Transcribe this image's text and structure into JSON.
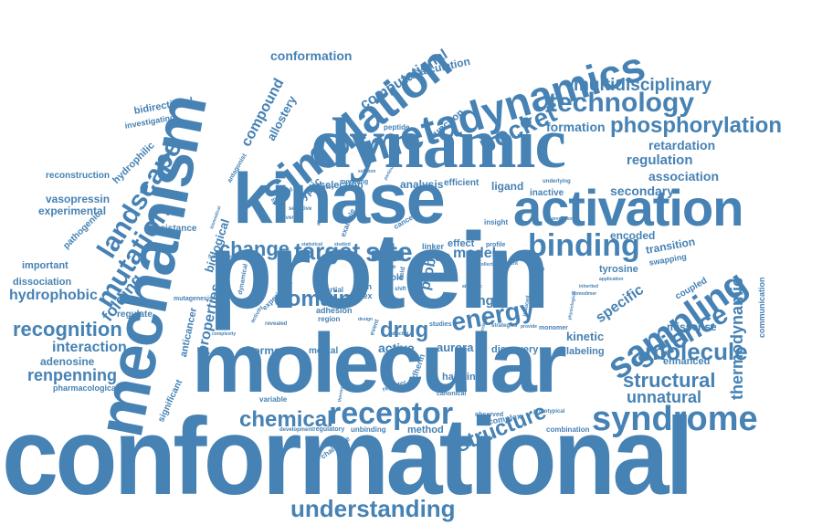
{
  "color": "#4682b4",
  "words": {
    "conformational": "conformational",
    "molecular": "molecular",
    "protein": "protein",
    "mechanism": "mechanism",
    "kinase": "kinase",
    "dynamic": "dynamic",
    "activation": "activation",
    "simulation": "simulation",
    "metadynamics": "metadynamics",
    "sampling": "sampling",
    "syndrome": "syndrome",
    "receptor": "receptor",
    "binding": "binding",
    "landscape": "landscape",
    "mutation": "mutation",
    "understanding": "understanding",
    "science": "science",
    "structure": "structure",
    "domain": "domain",
    "drug": "drug",
    "energy": "energy",
    "chemical": "chemical",
    "pocket": "pocket",
    "technology": "technology",
    "phosphorylation": "phosphorylation",
    "multidisciplinary": "multidisciplinary",
    "change": "change",
    "target": "target",
    "site": "site",
    "molecule": "molecule",
    "structural": "structural",
    "unnatural": "unnatural",
    "thermodynamic": "thermodynamic",
    "recognition": "recognition",
    "interaction": "interaction",
    "hydrophobic": "hydrophobic",
    "renpenning": "renpenning",
    "folding": "folding",
    "properties": "properties",
    "biological": "biological",
    "compound": "compound",
    "allostery": "allostery",
    "computational": "computational",
    "calculation": "calculation",
    "conformation": "conformation",
    "bidirectional": "bidirectional",
    "investigating": "investigating",
    "hydrophilic": "hydrophilic",
    "reconstruction": "reconstruction",
    "vasopressin": "vasopressin",
    "experimental": "experimental",
    "pathogenic": "pathogenic",
    "important": "important",
    "dissociation": "dissociation",
    "adenosine": "adenosine",
    "pharmacological": "pharmacological",
    "significant": "significant",
    "regulate": "regulate",
    "mutagenesis": "mutagenesis",
    "anticancer": "anticancer",
    "resistance": "resistance",
    "cryptic": "cryptic",
    "function": "function",
    "peptide": "peptide",
    "formation": "formation",
    "retardation": "retardation",
    "regulation": "regulation",
    "association": "association",
    "secondary": "secondary",
    "ligand": "ligand",
    "inactive": "inactive",
    "selection": "selection",
    "analysis": "analysis",
    "efficient": "efficient",
    "free": "free",
    "model": "model",
    "effect": "effect",
    "encoded": "encoded",
    "transition": "transition",
    "swapping": "swapping",
    "tyrosine": "tyrosine",
    "specific": "specific",
    "coupled": "coupled",
    "enhanced": "enhanced",
    "missense": "missense",
    "communication": "communication",
    "kinetic": "kinetic",
    "labeling": "labeling",
    "aurora": "aurora",
    "active": "active",
    "discovery": "discovery",
    "hormone": "hormone",
    "mental": "mental",
    "hairpin": "hairpin",
    "method": "method",
    "complex": "complex",
    "combination": "combination",
    "single": "single",
    "probe": "probe",
    "cadherin": "cadherin",
    "fgfr_site": "fgfr/site",
    "variable": "variable",
    "regulatory": "regulatory",
    "unbinding": "unbinding",
    "challenge": "challenge",
    "development": "development",
    "reporter": "reporter",
    "observed": "observed",
    "prototypical": "prototypical",
    "canonical": "canonical",
    "monomer": "monomer",
    "studies": "studies",
    "index": "index",
    "role": "role",
    "path": "path",
    "region": "region",
    "adhesion": "adhesion",
    "experiment": "experiment",
    "fundamental": "fundamental",
    "dynamical": "dynamical",
    "revealed": "revealed",
    "activity": "activity",
    "partial": "partial",
    "insight": "insight",
    "prediction": "prediction",
    "relevant": "relevant",
    "profile": "profile",
    "linker": "linker",
    "cancer": "cancer",
    "example": "example",
    "modeling": "modeling",
    "mediated": "mediated",
    "selective": "selective",
    "several": "several",
    "algorithm": "algorithm",
    "statistical": "statistical",
    "studied": "studied",
    "antagonist": "antagonist",
    "underlying": "underlying",
    "inherited": "inherited",
    "homodimer": "homodimer",
    "physiological": "physiological",
    "application": "application",
    "mutation_small": "mutation",
    "particularly": "particularly",
    "form": "form",
    "loop": "loop",
    "shift": "shift",
    "field": "field",
    "event": "event",
    "design": "design",
    "strategies": "strategies",
    "collective": "collective",
    "solution": "solution",
    "chemistry": "chemistry",
    "mutations": "mutations",
    "channel": "channel",
    "provide": "provide",
    "biomedical": "biomedical",
    "thermostable": "thermostable",
    "complexity": "complexity",
    "induced": "induced",
    "atomistic": "atomistic",
    "affected": "affected",
    "cellular": "cellular"
  }
}
